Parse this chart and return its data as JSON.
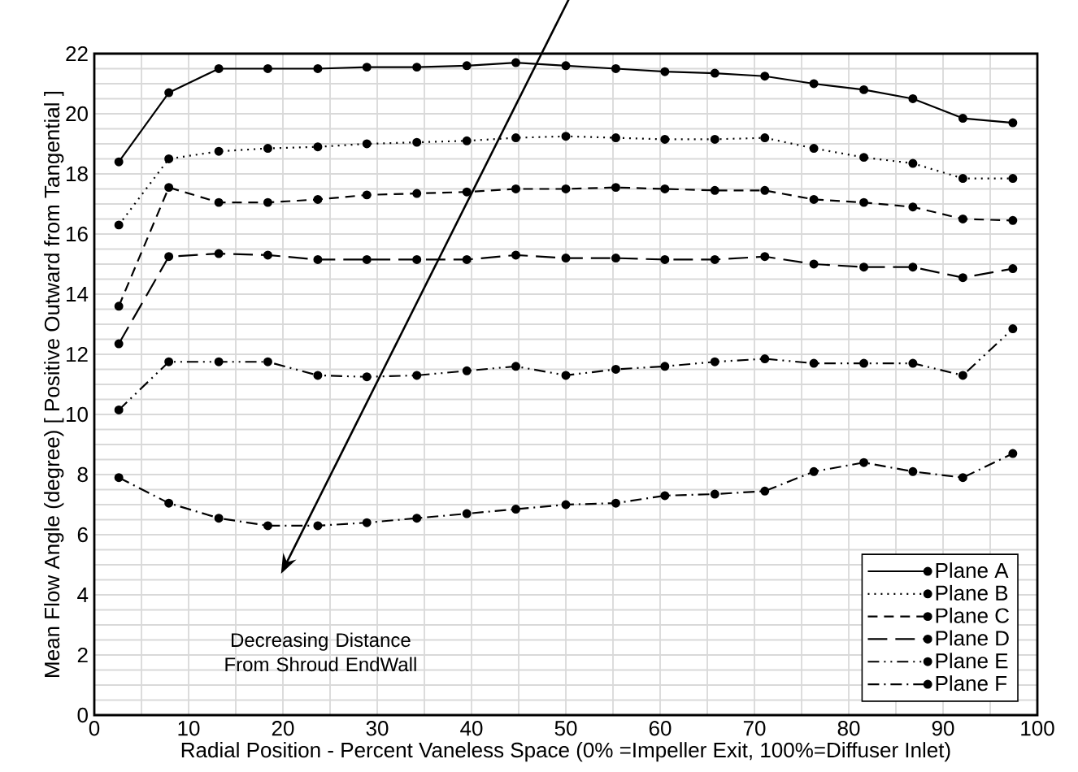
{
  "chart_data": {
    "type": "line",
    "xlabel": "Radial Position - Percent Vaneless Space (0% =Impeller Exit, 100%=Diffuser Inlet)",
    "ylabel": "Mean Flow Angle (degree) [ Positive Outward from Tangential ]",
    "x": [
      2.6,
      7.9,
      13.2,
      18.4,
      23.7,
      28.9,
      34.2,
      39.5,
      44.7,
      50,
      55.3,
      60.5,
      65.8,
      71.1,
      76.3,
      81.6,
      86.8,
      92.1,
      97.4
    ],
    "series": [
      {
        "name": "Plane A",
        "color": "#000000",
        "line_style": "solid",
        "values": [
          18.4,
          20.7,
          21.5,
          21.5,
          21.5,
          21.55,
          21.55,
          21.6,
          21.7,
          21.6,
          21.5,
          21.4,
          21.35,
          21.25,
          21.0,
          20.8,
          20.5,
          19.85,
          19.7
        ]
      },
      {
        "name": "Plane B",
        "color": "#000000",
        "line_style": "dotted",
        "values": [
          16.3,
          18.5,
          18.75,
          18.85,
          18.9,
          19.0,
          19.05,
          19.1,
          19.2,
          19.25,
          19.2,
          19.15,
          19.15,
          19.2,
          18.85,
          18.55,
          18.35,
          17.85,
          17.85
        ]
      },
      {
        "name": "Plane C",
        "color": "#000000",
        "line_style": "dashed",
        "values": [
          13.6,
          17.55,
          17.05,
          17.05,
          17.15,
          17.3,
          17.35,
          17.4,
          17.5,
          17.5,
          17.55,
          17.5,
          17.45,
          17.45,
          17.15,
          17.05,
          16.9,
          16.5,
          16.45
        ]
      },
      {
        "name": "Plane D",
        "color": "#000000",
        "line_style": "longdash",
        "values": [
          12.35,
          15.25,
          15.35,
          15.3,
          15.15,
          15.15,
          15.15,
          15.15,
          15.3,
          15.2,
          15.2,
          15.15,
          15.15,
          15.25,
          15.0,
          14.9,
          14.9,
          14.55,
          14.85
        ]
      },
      {
        "name": "Plane E",
        "color": "#000000",
        "line_style": "dashdotdot",
        "values": [
          10.15,
          11.75,
          11.75,
          11.75,
          11.3,
          11.25,
          11.3,
          11.45,
          11.6,
          11.3,
          11.5,
          11.6,
          11.75,
          11.85,
          11.7,
          11.7,
          11.7,
          11.3,
          12.85
        ]
      },
      {
        "name": "Plane F",
        "color": "#000000",
        "line_style": "dashdot",
        "values": [
          7.9,
          7.05,
          6.55,
          6.3,
          6.3,
          6.4,
          6.55,
          6.7,
          6.85,
          7.0,
          7.05,
          7.3,
          7.35,
          7.45,
          8.1,
          8.4,
          8.1,
          7.9,
          8.7
        ]
      }
    ],
    "xlim": [
      0,
      100
    ],
    "xticks": [
      0,
      10,
      20,
      30,
      40,
      50,
      60,
      70,
      80,
      90,
      100
    ],
    "ylim": [
      0,
      22
    ],
    "yticks": [
      0,
      2,
      4,
      6,
      8,
      10,
      12,
      14,
      16,
      18,
      20,
      22
    ],
    "grid": true,
    "legend": "bottom right",
    "marker": "circle",
    "annotations": [
      "Decreasing Distance From Shroud EndWall"
    ]
  }
}
